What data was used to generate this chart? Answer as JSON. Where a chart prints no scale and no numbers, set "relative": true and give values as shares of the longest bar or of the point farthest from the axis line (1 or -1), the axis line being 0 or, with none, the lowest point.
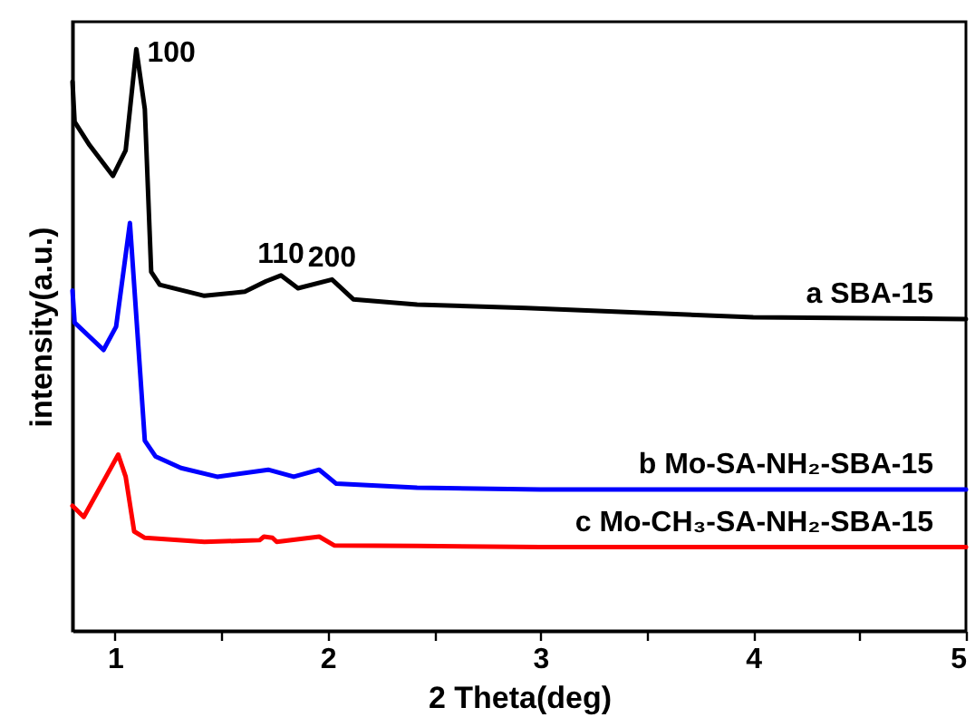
{
  "chart_data": {
    "type": "line",
    "relative": true,
    "xlabel": "2 Theta(deg)",
    "ylabel": "intensity(a.u.)",
    "xlim": [
      0.8,
      5
    ],
    "xticks": [
      1,
      {
        "value": 1.5,
        "label": null
      },
      2,
      {
        "value": 2.5,
        "label": null
      },
      3,
      {
        "value": 3.5,
        "label": null
      },
      4,
      {
        "value": 4.5,
        "label": null
      },
      5
    ],
    "grid": false,
    "tick_labels": "x",
    "marker": "none",
    "line_style": "solid",
    "annotations": [
      {
        "text": "100",
        "x": 1.1,
        "y": 1.0
      },
      {
        "text": "110",
        "x": 1.78,
        "y": 0.611
      },
      {
        "text": "200",
        "x": 2.02,
        "y": 0.604
      }
    ],
    "series": [
      {
        "name": "a SBA-15",
        "color": "#000000",
        "x": [
          0.8,
          0.81,
          0.88,
          0.99,
          1.05,
          1.1,
          1.14,
          1.17,
          1.21,
          1.42,
          1.61,
          1.71,
          1.78,
          1.86,
          2.02,
          2.12,
          2.42,
          2.93,
          4,
          5
        ],
        "values": [
          0.944,
          0.875,
          0.835,
          0.782,
          0.826,
          1.0,
          0.897,
          0.617,
          0.595,
          0.576,
          0.583,
          0.601,
          0.611,
          0.589,
          0.604,
          0.57,
          0.561,
          0.555,
          0.539,
          0.536
        ]
      },
      {
        "name": "b Mo-SA-NH₂-SBA-15",
        "color": "#0000ff",
        "x": [
          0.8,
          0.81,
          0.946,
          1.005,
          1.07,
          1.14,
          1.19,
          1.31,
          1.48,
          1.72,
          1.84,
          1.96,
          2.04,
          2.42,
          3,
          5
        ],
        "values": [
          0.585,
          0.53,
          0.483,
          0.523,
          0.701,
          0.327,
          0.3,
          0.28,
          0.265,
          0.277,
          0.265,
          0.277,
          0.253,
          0.246,
          0.243,
          0.243
        ]
      },
      {
        "name": "c Mo-CH₃-SA-NH₂-SBA-15",
        "color": "#ff0000",
        "x": [
          0.8,
          0.853,
          1.015,
          1.05,
          1.09,
          1.14,
          1.42,
          1.68,
          1.7,
          1.74,
          1.76,
          1.96,
          2.03,
          2.42,
          3,
          5
        ],
        "values": [
          0.215,
          0.196,
          0.303,
          0.265,
          0.171,
          0.16,
          0.153,
          0.156,
          0.162,
          0.16,
          0.153,
          0.162,
          0.147,
          0.146,
          0.144,
          0.144
        ]
      }
    ]
  }
}
